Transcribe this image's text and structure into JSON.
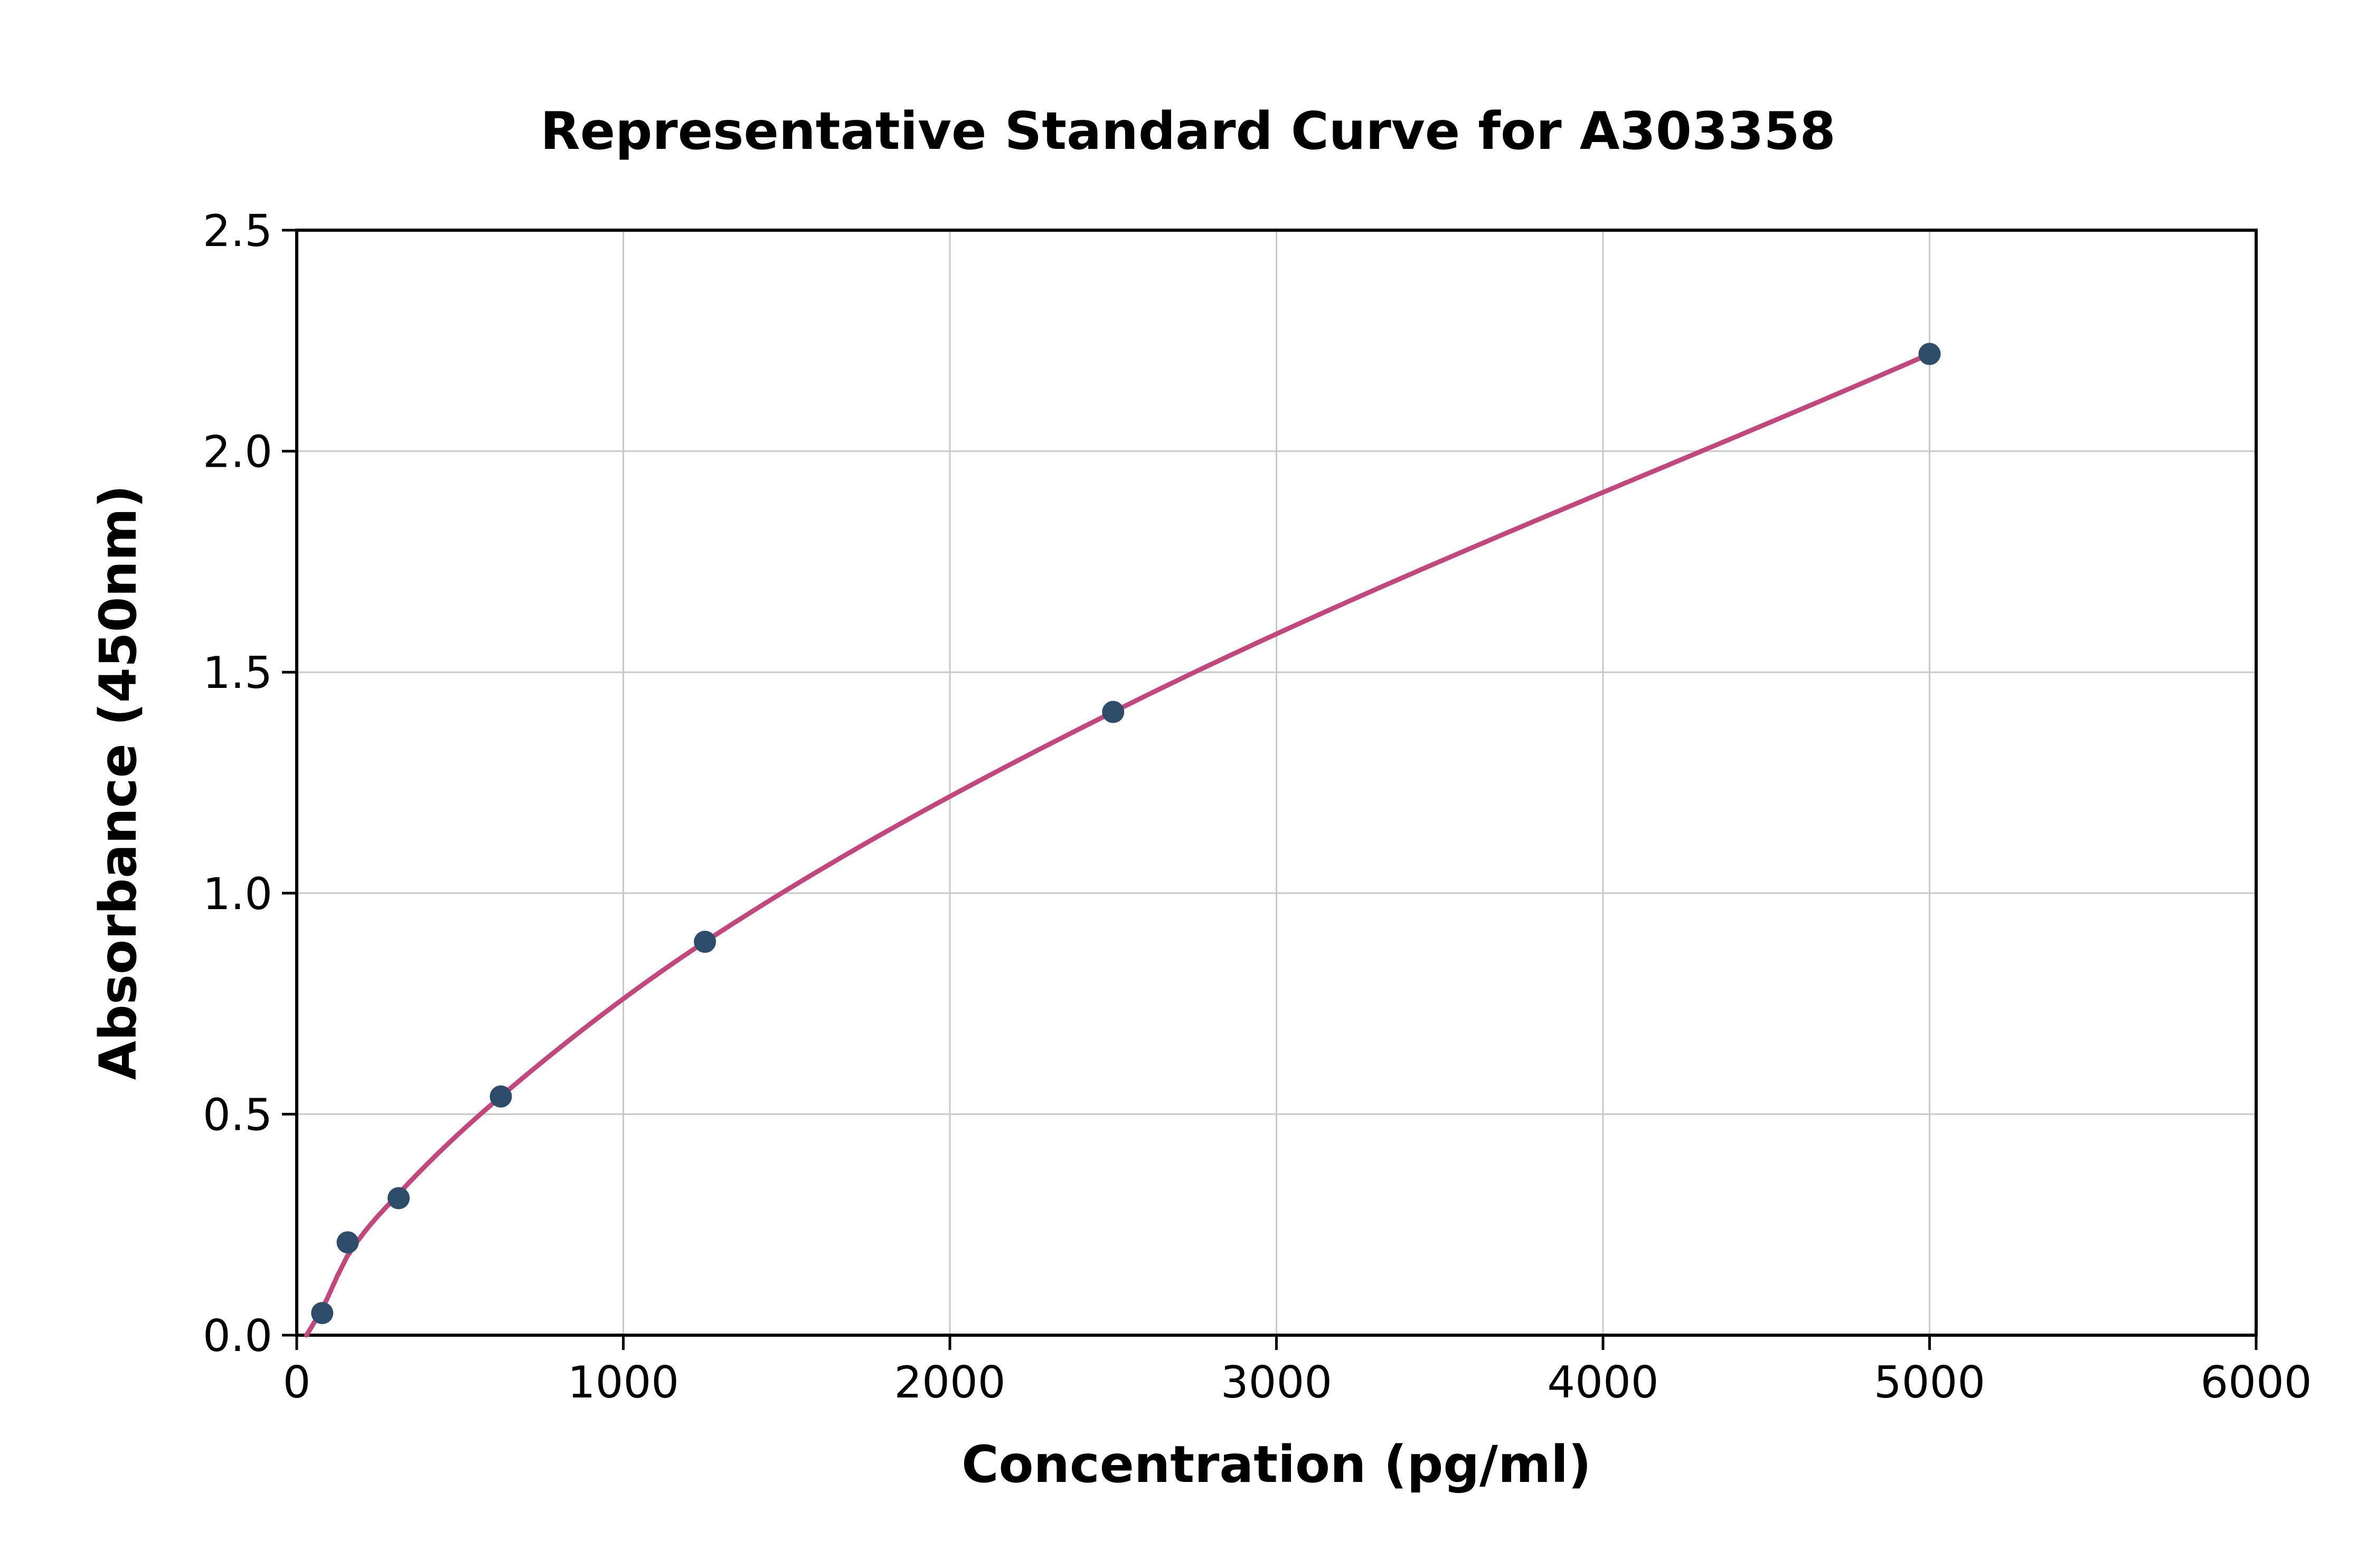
{
  "chart_data": {
    "type": "scatter",
    "title": "Representative Standard Curve for A303358",
    "xlabel": "Concentration (pg/ml)",
    "ylabel": "Absorbance (450nm)",
    "xlim": [
      0,
      6000
    ],
    "ylim": [
      0,
      2.5
    ],
    "xticks": [
      0,
      1000,
      2000,
      3000,
      4000,
      5000,
      6000
    ],
    "xtick_labels": [
      "0",
      "1000",
      "2000",
      "3000",
      "4000",
      "5000",
      "6000"
    ],
    "yticks": [
      0,
      0.5,
      1.0,
      1.5,
      2.0,
      2.5
    ],
    "ytick_labels": [
      "0.0",
      "0.5",
      "1.0",
      "1.5",
      "2.0",
      "2.5"
    ],
    "grid": true,
    "legend": "none",
    "points": [
      [
        78,
        0.05
      ],
      [
        156,
        0.21
      ],
      [
        312,
        0.31
      ],
      [
        625,
        0.54
      ],
      [
        1250,
        0.89
      ],
      [
        2500,
        1.41
      ],
      [
        5000,
        2.22
      ]
    ],
    "curve_points": [
      [
        30,
        0.0
      ],
      [
        78,
        0.06
      ],
      [
        156,
        0.18
      ],
      [
        312,
        0.32
      ],
      [
        625,
        0.54
      ],
      [
        1250,
        0.89
      ],
      [
        2500,
        1.41
      ],
      [
        5000,
        2.22
      ]
    ],
    "colors": {
      "point_color": "#2e4d6b",
      "curve_color": "#c2477c",
      "grid_color": "#c9c9c9",
      "axis_color": "#000000",
      "background": "#ffffff"
    }
  }
}
